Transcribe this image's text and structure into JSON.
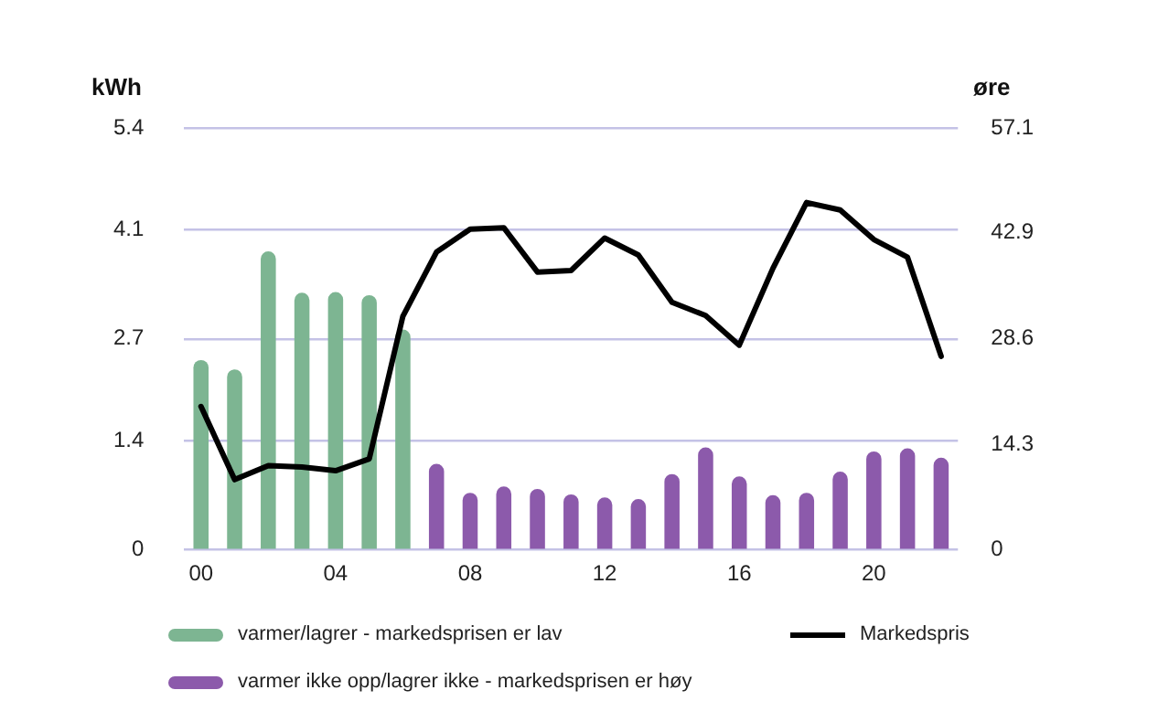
{
  "chart_data": {
    "type": "bar",
    "ylabel": "kWh",
    "y2label": "øre",
    "categories": [
      "00",
      null,
      null,
      null,
      "04",
      null,
      null,
      null,
      "08",
      null,
      null,
      null,
      "12",
      null,
      null,
      null,
      "16",
      null,
      null,
      null,
      "20",
      null,
      null
    ],
    "series": [
      {
        "name": "varmer/lagrer - markedsprisen er lav",
        "color": "#7db592",
        "values": [
          2.43,
          2.31,
          3.82,
          3.29,
          3.3,
          3.26,
          2.82,
          null,
          null,
          null,
          null,
          null,
          null,
          null,
          null,
          null,
          null,
          null,
          null,
          null,
          null,
          null,
          null
        ]
      },
      {
        "name": "varmer ikke opp/lagrer ikke - markedsprisen er høy",
        "color": "#8c5aab",
        "values": [
          null,
          null,
          null,
          null,
          null,
          null,
          null,
          1.1,
          0.73,
          0.81,
          0.78,
          0.71,
          0.67,
          0.65,
          0.97,
          1.31,
          0.94,
          0.7,
          0.73,
          1.0,
          1.26,
          1.3,
          1.18
        ]
      },
      {
        "name": "Markedspris",
        "type": "line",
        "axis": "y2",
        "color": "#000000",
        "marker": "none",
        "values": [
          19.4,
          9.5,
          11.4,
          11.2,
          10.7,
          12.3,
          31.6,
          40.3,
          43.4,
          43.6,
          37.6,
          37.8,
          42.2,
          39.9,
          33.5,
          31.7,
          27.7,
          38.1,
          47,
          46,
          42,
          39.6,
          26.2
        ]
      }
    ],
    "ylim": [
      0,
      5.4
    ],
    "yticks": [
      0,
      1.4,
      2.7,
      4.1,
      5.4
    ],
    "y2lim": [
      0,
      57.1
    ],
    "y2ticks": [
      0,
      14.3,
      28.6,
      42.9,
      57.1
    ],
    "grid": "y",
    "legend": "bottom"
  }
}
